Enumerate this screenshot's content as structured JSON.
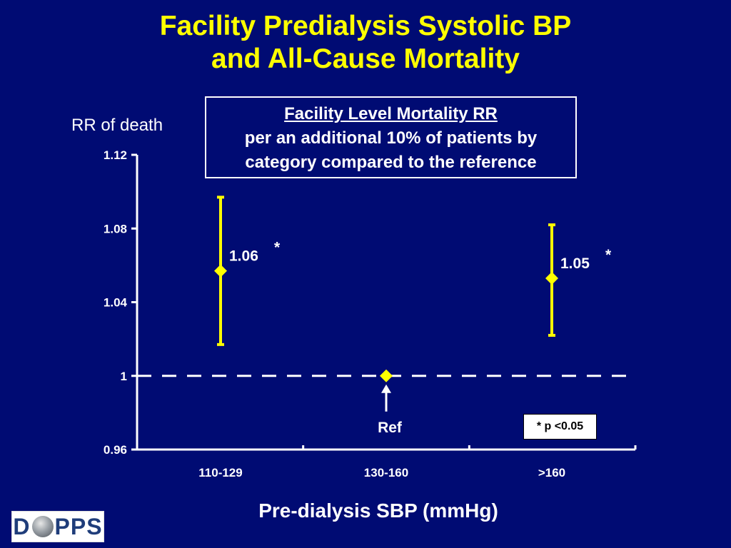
{
  "title": {
    "line1": "Facility Predialysis Systolic BP",
    "line2": "and All-Cause Mortality"
  },
  "note": {
    "heading": "Facility Level Mortality RR",
    "line2": "per an additional 10% of patients by",
    "line3": "category compared to the reference"
  },
  "significance_note": "* p <0.05",
  "logo": {
    "left": "D",
    "right": "PPS"
  },
  "colors": {
    "background": "#000b73",
    "title": "#ffff00",
    "series": "#ffff00",
    "text": "#ffffff"
  },
  "chart_data": {
    "type": "scatter",
    "ylabel": "RR of death",
    "xlabel": "Pre-dialysis SBP (mmHg)",
    "categories": [
      "110-129",
      "130-160",
      ">160"
    ],
    "ylim": [
      0.96,
      1.12
    ],
    "yticks": [
      "1.12",
      "1.08",
      "1.04",
      "1",
      "0.96"
    ],
    "reference_line": 1,
    "points": [
      {
        "category": "110-129",
        "value": 1.057,
        "lower": 1.017,
        "upper": 1.097,
        "label": "1.06",
        "significant": true
      },
      {
        "category": "130-160",
        "value": 1.0,
        "lower": null,
        "upper": null,
        "label": "Ref",
        "significant": false
      },
      {
        "category": ">160",
        "value": 1.053,
        "lower": 1.022,
        "upper": 1.082,
        "label": "1.05",
        "significant": true
      }
    ],
    "significance_marker": "*",
    "grid": false
  }
}
